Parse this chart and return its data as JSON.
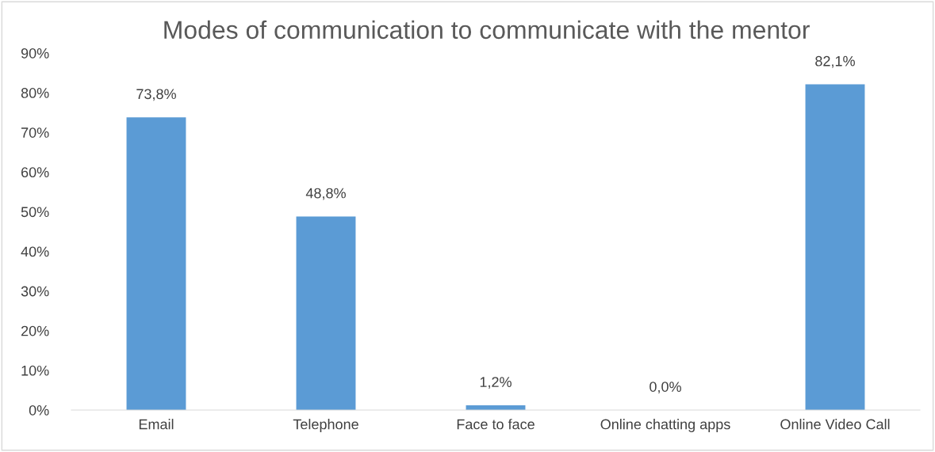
{
  "chart_data": {
    "type": "bar",
    "title": "Modes of communication to communicate with the mentor",
    "categories": [
      "Email",
      "Telephone",
      "Face to face",
      "Online chatting apps",
      "Online Video Call"
    ],
    "values": [
      73.8,
      48.8,
      1.2,
      0.0,
      82.1
    ],
    "value_labels": [
      "73,8%",
      "48,8%",
      "1,2%",
      "0,0%",
      "82,1%"
    ],
    "color": "#5b9bd5",
    "ylim": [
      0,
      90
    ],
    "yticks": [
      {
        "value": 0,
        "label": "0%"
      },
      {
        "value": 10,
        "label": "10%"
      },
      {
        "value": 20,
        "label": "20%"
      },
      {
        "value": 30,
        "label": "30%"
      },
      {
        "value": 40,
        "label": "40%"
      },
      {
        "value": 50,
        "label": "50%"
      },
      {
        "value": 60,
        "label": "60%"
      },
      {
        "value": 70,
        "label": "70%"
      },
      {
        "value": 80,
        "label": "80%"
      },
      {
        "value": 90,
        "label": "90%"
      }
    ],
    "grid": false
  }
}
